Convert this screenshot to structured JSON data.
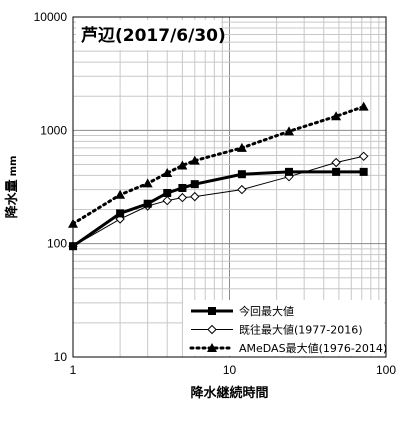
{
  "chart_data": {
    "type": "line",
    "title": "芦辺(2017/6/30)",
    "xlabel": "降水継続時間",
    "ylabel": "降水量",
    "ylabel_unit": "mm",
    "x_scale": "log",
    "y_scale": "log",
    "xlim": [
      1,
      100
    ],
    "ylim": [
      10,
      10000
    ],
    "x_ticks": [
      "1",
      "10",
      "100"
    ],
    "y_ticks": [
      "10",
      "100",
      "1000",
      "10000"
    ],
    "grid": true,
    "legend_position": "bottom-right",
    "series": [
      {
        "name": "今回最大値",
        "color": "#000000",
        "style": "solid-thick",
        "marker": "square",
        "x": [
          1,
          2,
          3,
          4,
          5,
          6,
          12,
          24,
          48,
          72
        ],
        "y": [
          95,
          185,
          225,
          280,
          310,
          335,
          410,
          430,
          430,
          430
        ]
      },
      {
        "name": "既往最大値(1977-2016)",
        "color": "#000000",
        "style": "solid-thin",
        "marker": "diamond-open",
        "x": [
          1,
          2,
          3,
          4,
          5,
          6,
          12,
          24,
          48,
          72
        ],
        "y": [
          95,
          165,
          215,
          240,
          255,
          260,
          300,
          390,
          520,
          590
        ]
      },
      {
        "name": "AMeDAS最大値(1976-2014)",
        "color": "#000000",
        "style": "dotted",
        "marker": "triangle",
        "x": [
          1,
          2,
          3,
          4,
          5,
          6,
          12,
          24,
          48,
          72
        ],
        "y": [
          150,
          270,
          340,
          420,
          490,
          540,
          700,
          980,
          1330,
          1620
        ]
      }
    ]
  }
}
